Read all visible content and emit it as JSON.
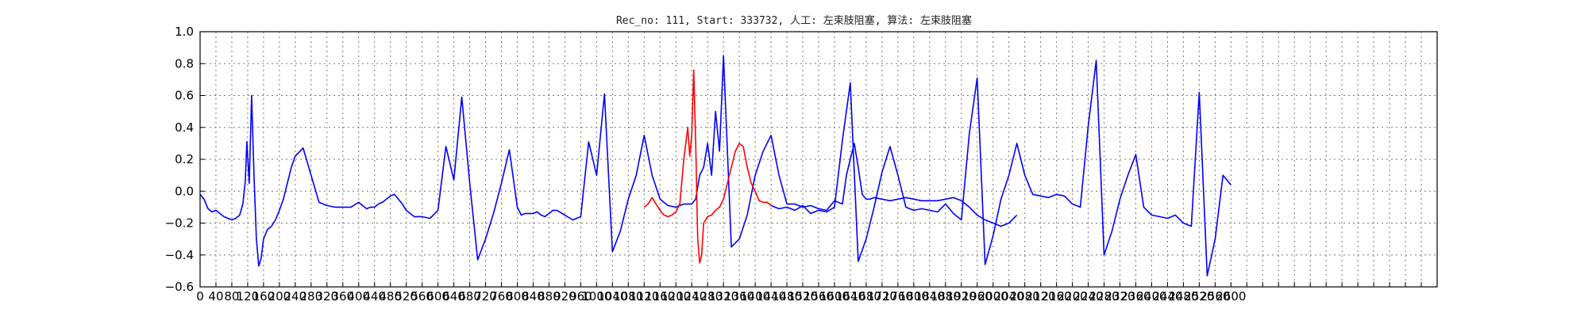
{
  "chart_data": {
    "type": "line",
    "title": "Rec_no: 111, Start: 333732, 人工: 左束肢阻塞, 算法: 左束肢阻塞",
    "xlabel": "",
    "ylabel": "",
    "xlim": [
      0,
      3120
    ],
    "ylim": [
      -0.6,
      1.0
    ],
    "grid": true,
    "x_tick_step": 40,
    "x_tick_labels": [
      "0",
      "40",
      "80",
      "120",
      "160",
      "200",
      "240",
      "280",
      "320",
      "360",
      "400",
      "440",
      "480",
      "520",
      "560",
      "600",
      "640",
      "680",
      "720",
      "760",
      "800",
      "840",
      "880",
      "920",
      "960",
      "1000",
      "1040",
      "1080",
      "1120",
      "1160",
      "1200",
      "1240",
      "1280",
      "1320",
      "1360",
      "1400",
      "1440",
      "1480",
      "1520",
      "1560",
      "1600",
      "1640",
      "1680",
      "1720",
      "1760",
      "1800",
      "1840",
      "1880",
      "1920",
      "1960",
      "2000",
      "2040",
      "2080",
      "2120",
      "2160",
      "2200",
      "2240",
      "2280",
      "2320",
      "2360",
      "2400",
      "2440",
      "2480",
      "2520",
      "2560",
      "2600"
    ],
    "y_ticks": [
      -0.6,
      -0.4,
      -0.2,
      0.0,
      0.2,
      0.4,
      0.6,
      0.8,
      1.0
    ],
    "y_tick_labels": [
      "−0.6",
      "−0.4",
      "−0.2",
      "0.0",
      "0.2",
      "0.4",
      "0.6",
      "0.8",
      "1.0"
    ],
    "series": [
      {
        "color": "#0000ff",
        "x": [
          0,
          10,
          20,
          30,
          40,
          50,
          60,
          70,
          80,
          90,
          100,
          108,
          114,
          118,
          124,
          130,
          136,
          142,
          148,
          154,
          160,
          170,
          180,
          190,
          200,
          210,
          220,
          230,
          240,
          260,
          280,
          300,
          320,
          340,
          360,
          380,
          400,
          420,
          430,
          440,
          450,
          460,
          470,
          480,
          490,
          500,
          510,
          520,
          540,
          560,
          580,
          600,
          620,
          640,
          660,
          680,
          700,
          720,
          740,
          760,
          780,
          800,
          810,
          820,
          830,
          840,
          850,
          860,
          870,
          880,
          890,
          900,
          920,
          940,
          960,
          980,
          1000,
          1020,
          1040,
          1060,
          1080,
          1100,
          1120,
          1140,
          1160,
          1180,
          1200,
          1220,
          1240,
          1250,
          1260,
          1270,
          1280,
          1290,
          1300,
          1310,
          1320,
          1340,
          1360,
          1380,
          1400,
          1420,
          1440,
          1460,
          1480,
          1500,
          1520,
          1540,
          1560,
          1580,
          1600,
          1620,
          1630,
          1640,
          1650,
          1660,
          1670,
          1680,
          1690,
          1700,
          1720,
          1740,
          1760,
          1780,
          1800,
          1820,
          1840,
          1860,
          1880,
          1900,
          1920,
          1940,
          1960,
          1980,
          2000,
          2020,
          2040,
          2060
        ],
        "y": [
          -0.02,
          -0.05,
          -0.11,
          -0.13,
          -0.12,
          -0.14,
          -0.16,
          -0.17,
          -0.18,
          -0.17,
          -0.15,
          -0.08,
          0.06,
          0.31,
          0.05,
          0.6,
          0.1,
          -0.3,
          -0.47,
          -0.42,
          -0.3,
          -0.24,
          -0.22,
          -0.18,
          -0.12,
          -0.05,
          0.05,
          0.15,
          0.22,
          0.27,
          0.1,
          -0.07,
          -0.09,
          -0.1,
          -0.1,
          -0.1,
          -0.07,
          -0.11,
          -0.1,
          -0.1,
          -0.08,
          -0.07,
          -0.05,
          -0.03,
          -0.02,
          -0.05,
          -0.08,
          -0.12,
          -0.16,
          -0.16,
          -0.17,
          -0.12,
          0.28,
          0.07,
          0.59,
          0.05,
          -0.43,
          -0.3,
          -0.14,
          0.05,
          0.26,
          -0.1,
          -0.15,
          -0.14,
          -0.14,
          -0.14,
          -0.13,
          -0.15,
          -0.16,
          -0.14,
          -0.12,
          -0.12,
          -0.15,
          -0.18,
          -0.16,
          0.31,
          0.1,
          0.61,
          -0.38,
          -0.25,
          -0.05,
          0.1,
          0.35,
          0.1,
          -0.05,
          -0.09,
          -0.1,
          -0.08,
          -0.08,
          -0.05,
          0.1,
          0.15,
          0.3,
          0.1,
          0.5,
          0.25,
          0.85,
          -0.35,
          -0.3,
          -0.15,
          0.1,
          0.25,
          0.35,
          0.1,
          -0.08,
          -0.08,
          -0.1,
          -0.09,
          -0.11,
          -0.12,
          -0.06,
          -0.08,
          0.1,
          0.2,
          0.3,
          0.15,
          -0.02,
          -0.05,
          -0.05,
          -0.04,
          -0.05,
          -0.06,
          -0.05,
          -0.04,
          -0.05,
          -0.06,
          -0.06,
          -0.06,
          -0.05,
          -0.04,
          -0.06,
          -0.1,
          -0.15,
          -0.18,
          -0.2,
          -0.22,
          -0.2,
          -0.15
        ]
      },
      {
        "color": "#ff0000",
        "x": [
          1120,
          1130,
          1140,
          1150,
          1160,
          1170,
          1180,
          1190,
          1200,
          1210,
          1220,
          1230,
          1235,
          1240,
          1245,
          1250,
          1255,
          1260,
          1265,
          1270,
          1280,
          1290,
          1300,
          1310,
          1320,
          1330,
          1340,
          1350,
          1360,
          1370,
          1380,
          1390,
          1400,
          1410,
          1420,
          1430,
          1440
        ],
        "y": [
          -0.1,
          -0.08,
          -0.04,
          -0.08,
          -0.12,
          -0.15,
          -0.16,
          -0.15,
          -0.13,
          -0.08,
          0.2,
          0.4,
          0.22,
          0.35,
          0.76,
          0.3,
          -0.3,
          -0.45,
          -0.4,
          -0.2,
          -0.16,
          -0.15,
          -0.12,
          -0.1,
          -0.05,
          0.05,
          0.15,
          0.25,
          0.3,
          0.28,
          0.15,
          0.05,
          0.0,
          -0.06,
          -0.07,
          -0.07,
          -0.09
        ]
      },
      {
        "color": "#0000ff",
        "x": [
          1440,
          1460,
          1480,
          1500,
          1520,
          1540,
          1560,
          1580,
          1600,
          1620,
          1640,
          1660,
          1680,
          1700,
          1720,
          1740,
          1760,
          1780,
          1800,
          1820,
          1840,
          1860,
          1880,
          1900,
          1920,
          1940,
          1960,
          1980,
          2000,
          2020,
          2040,
          2060,
          2080,
          2100,
          2120,
          2140,
          2160,
          2180,
          2200,
          2220,
          2240,
          2260,
          2280,
          2300,
          2320,
          2340,
          2360,
          2380,
          2400,
          2420,
          2440,
          2460,
          2480,
          2500,
          2520,
          2540,
          2560,
          2580,
          2600
        ],
        "y": [
          -0.09,
          -0.11,
          -0.1,
          -0.12,
          -0.09,
          -0.14,
          -0.12,
          -0.13,
          -0.1,
          0.32,
          0.68,
          -0.44,
          -0.3,
          -0.1,
          0.12,
          0.28,
          0.1,
          -0.1,
          -0.12,
          -0.11,
          -0.12,
          -0.13,
          -0.08,
          -0.14,
          -0.18,
          0.36,
          0.71,
          -0.46,
          -0.28,
          -0.05,
          0.1,
          0.3,
          0.1,
          -0.02,
          -0.03,
          -0.04,
          -0.02,
          -0.03,
          -0.08,
          -0.1,
          0.41,
          0.82,
          -0.4,
          -0.25,
          -0.05,
          0.1,
          0.23,
          -0.1,
          -0.15,
          -0.16,
          -0.17,
          -0.15,
          -0.2,
          -0.22,
          0.62,
          -0.53,
          -0.3,
          0.1,
          0.04
        ]
      }
    ]
  }
}
